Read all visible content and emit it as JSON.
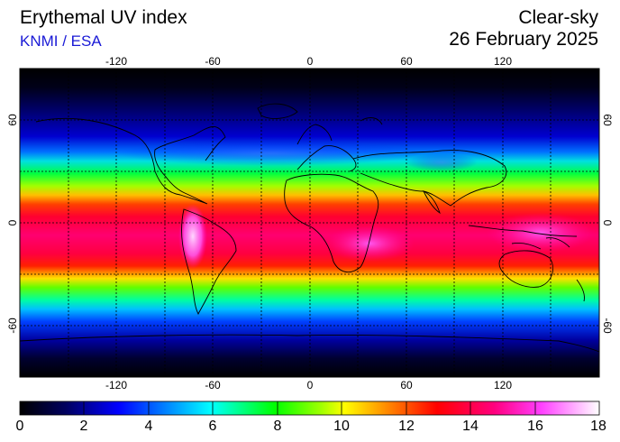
{
  "header": {
    "title": "Erythemal UV index",
    "credit": "KNMI / ESA",
    "mode": "Clear-sky",
    "date": "26 February 2025"
  },
  "map": {
    "lon_ticks": [
      "-120",
      "-60",
      "0",
      "60",
      "120"
    ],
    "lat_ticks": [
      "60",
      "0",
      "-60"
    ],
    "lon_range": [
      -180,
      180
    ],
    "lat_range": [
      -90,
      90
    ],
    "grid": "dotted, 30-degree spacing"
  },
  "colorbar": {
    "labels": [
      "0",
      "2",
      "4",
      "6",
      "8",
      "10",
      "12",
      "14",
      "16",
      "18"
    ],
    "range": [
      0,
      18
    ]
  },
  "colors": {
    "scale": [
      "#000000",
      "#00008c",
      "#0000ff",
      "#00ffff",
      "#00ff00",
      "#ffff00",
      "#ff8000",
      "#ff0000",
      "#ff00a0",
      "#ff80ff",
      "#ffffff"
    ]
  }
}
